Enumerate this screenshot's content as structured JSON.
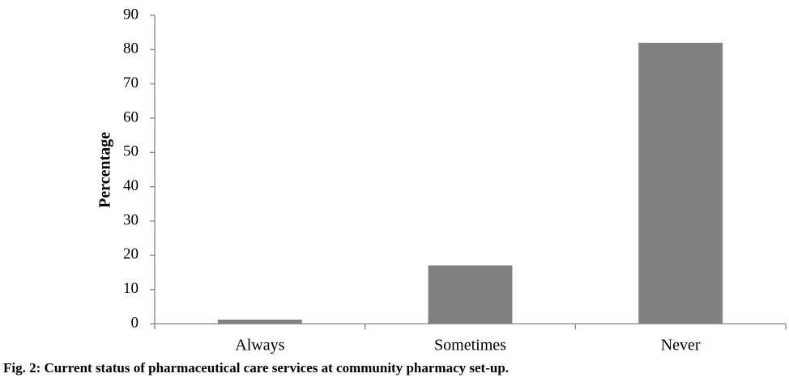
{
  "chart_data": {
    "type": "bar",
    "caption": "Fig. 2: Current status of pharmaceutical care services at community pharmacy set-up.",
    "y_label": "Percentage",
    "categories": [
      "Always",
      "Sometimes",
      "Never"
    ],
    "values": [
      1.2,
      17,
      82
    ],
    "color": "#808080",
    "ylim": [
      0,
      90
    ],
    "yticks": [
      0,
      10,
      20,
      30,
      40,
      50,
      60,
      70,
      80,
      90
    ],
    "grid": false
  }
}
